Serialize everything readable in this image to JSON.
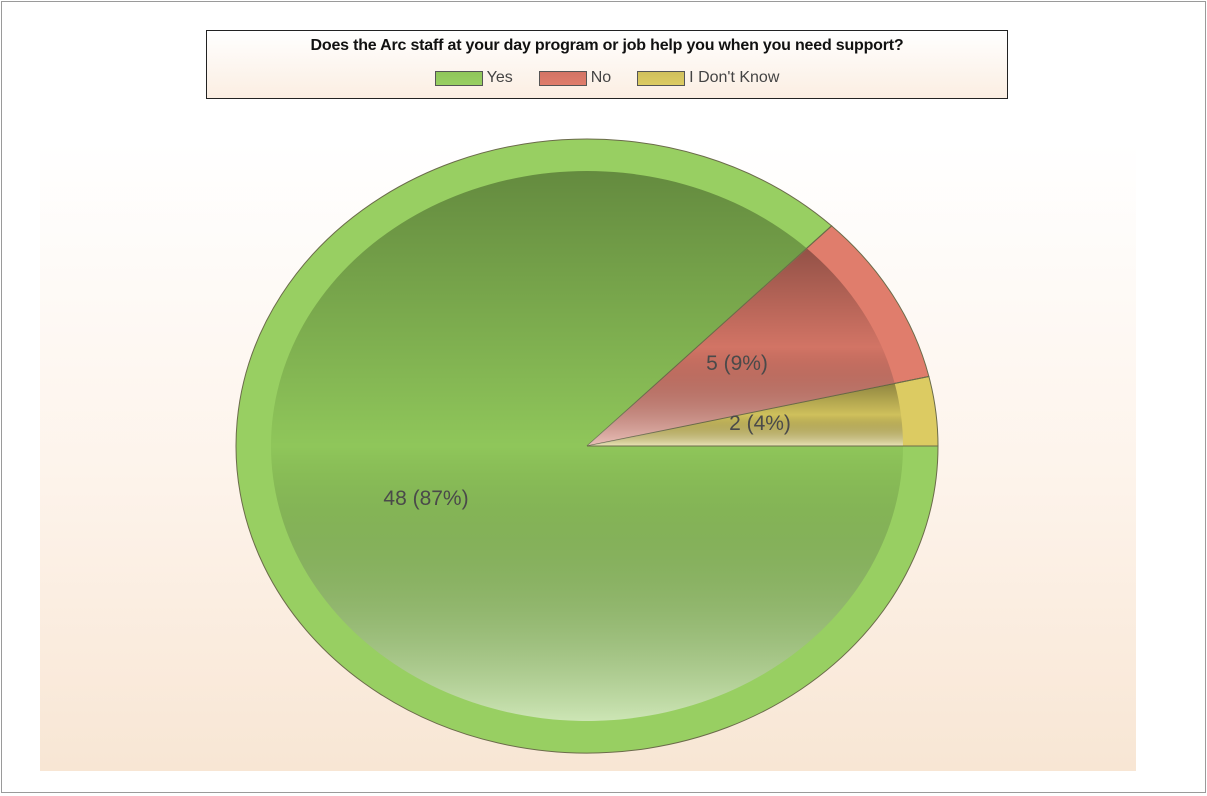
{
  "chart_data": {
    "type": "pie",
    "title": "Does the Arc staff at your day program or job help you when you need support?",
    "legend_position": "top",
    "slices": [
      {
        "label": "Yes",
        "value": 48,
        "percent": 87,
        "data_label": "48 (87%)",
        "color": "#8fc65a",
        "edge": "#98cf62"
      },
      {
        "label": "No",
        "value": 5,
        "percent": 9,
        "data_label": "5 (9%)",
        "color": "#d27465",
        "edge": "#e07d6c"
      },
      {
        "label": "I Don't Know",
        "value": 2,
        "percent": 4,
        "data_label": "2 (4%)",
        "color": "#cfc05c",
        "edge": "#dccb62"
      }
    ]
  }
}
